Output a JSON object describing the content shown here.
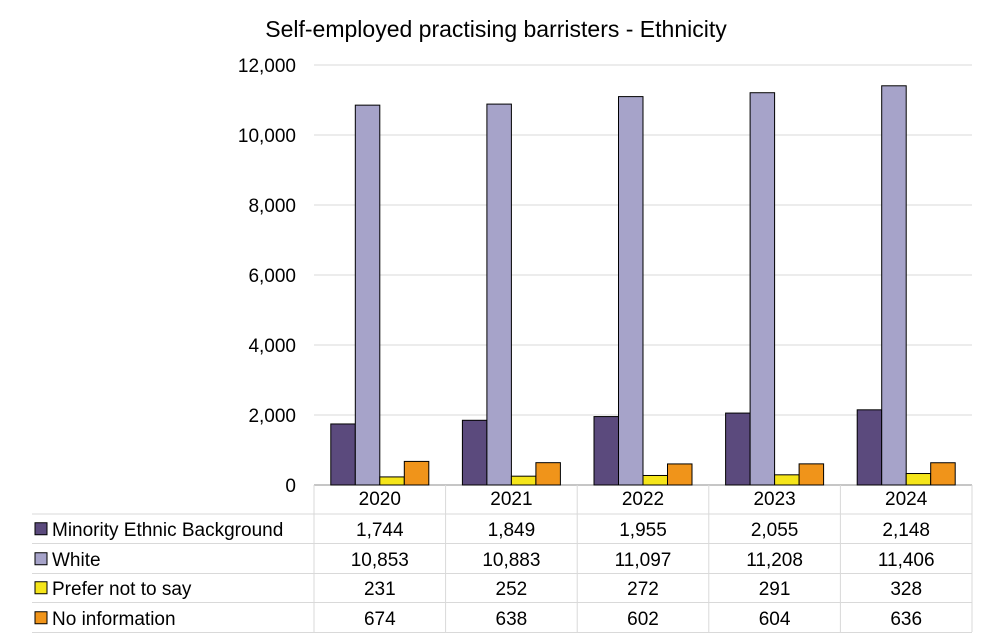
{
  "chart_data": {
    "type": "bar",
    "title": "Self-employed practising barristers - Ethnicity",
    "categories": [
      "2020",
      "2021",
      "2022",
      "2023",
      "2024"
    ],
    "yticks": [
      "0",
      "2,000",
      "4,000",
      "6,000",
      "8,000",
      "10,000",
      "12,000"
    ],
    "ylim": [
      0,
      12000
    ],
    "grid": true,
    "legend": "data-table",
    "series": [
      {
        "name": "Minority Ethnic Background",
        "color": "#5b4a7d",
        "values": [
          1744,
          1849,
          1955,
          2055,
          2148
        ],
        "labels": [
          "1,744",
          "1,849",
          "1,955",
          "2,055",
          "2,148"
        ]
      },
      {
        "name": "White",
        "color": "#a6a3c9",
        "values": [
          10853,
          10883,
          11097,
          11208,
          11406
        ],
        "labels": [
          "10,853",
          "10,883",
          "11,097",
          "11,208",
          "11,406"
        ]
      },
      {
        "name": "Prefer not to say",
        "color": "#f5e51a",
        "values": [
          231,
          252,
          272,
          291,
          328
        ],
        "labels": [
          "231",
          "252",
          "272",
          "291",
          "328"
        ]
      },
      {
        "name": "No information",
        "color": "#f0941a",
        "values": [
          674,
          638,
          602,
          604,
          636
        ],
        "labels": [
          "674",
          "638",
          "602",
          "604",
          "636"
        ]
      }
    ]
  }
}
